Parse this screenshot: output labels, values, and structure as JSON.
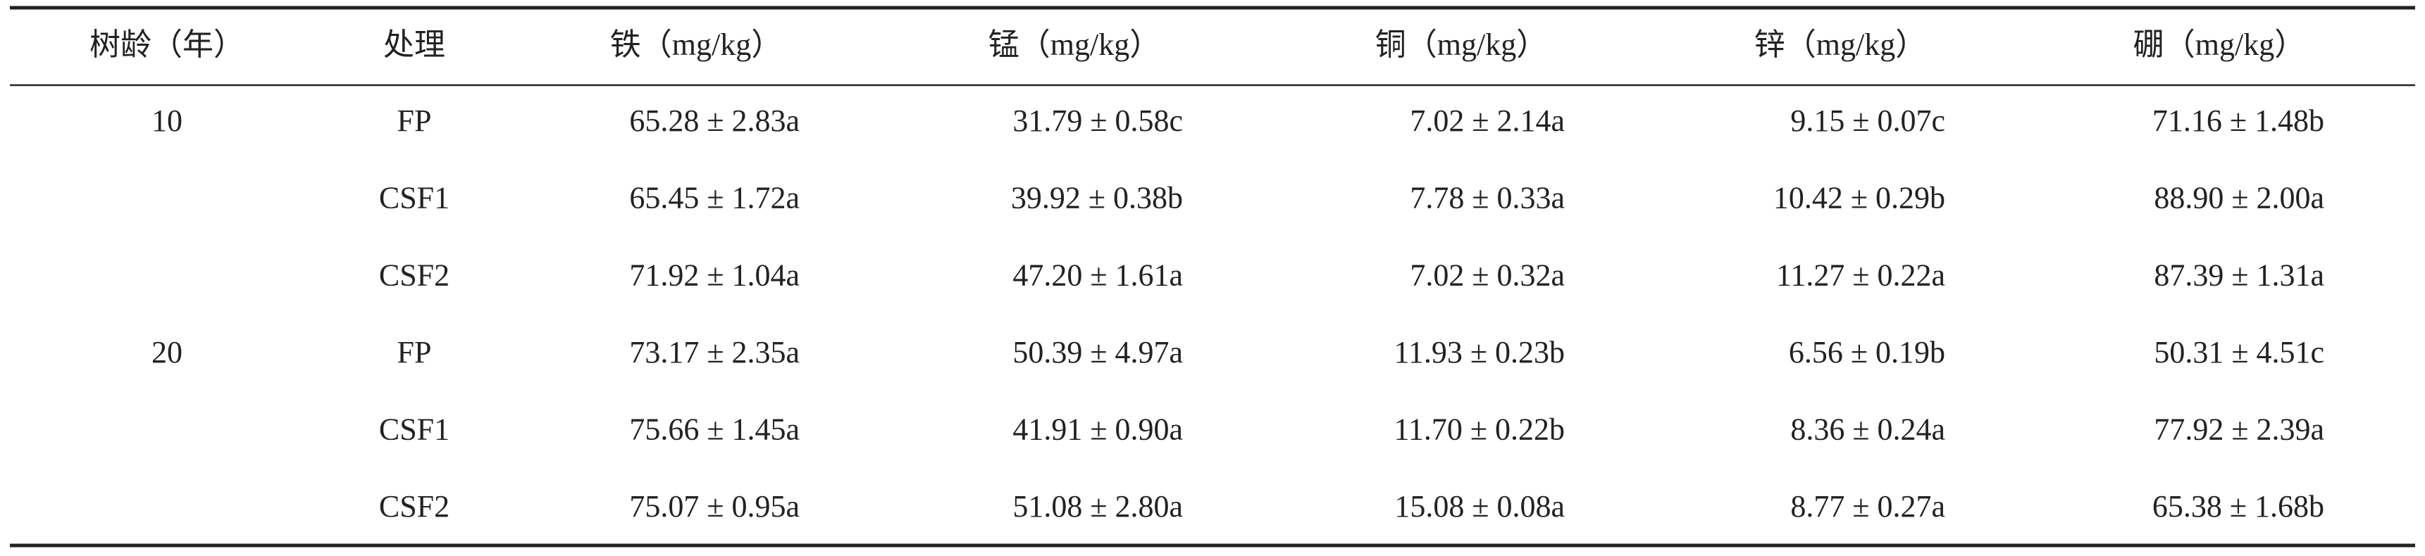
{
  "table": {
    "header": [
      "树龄（年）",
      "处理",
      "铁（mg/kg）",
      "锰（mg/kg）",
      "铜（mg/kg）",
      "锌（mg/kg）",
      "硼（mg/kg）"
    ],
    "groups": [
      {
        "age": "10",
        "rows": [
          [
            "FP",
            "65.28 ± 2.83a",
            "31.79 ± 0.58c",
            "7.02 ± 2.14a",
            "9.15 ± 0.07c",
            "71.16 ± 1.48b"
          ],
          [
            "CSF1",
            "65.45 ± 1.72a",
            "39.92 ± 0.38b",
            "7.78 ± 0.33a",
            "10.42 ± 0.29b",
            "88.90 ± 2.00a"
          ],
          [
            "CSF2",
            "71.92 ± 1.04a",
            "47.20 ± 1.61a",
            "7.02 ± 0.32a",
            "11.27 ± 0.22a",
            "87.39 ± 1.31a"
          ]
        ]
      },
      {
        "age": "20",
        "rows": [
          [
            "FP",
            "73.17 ± 2.35a",
            "50.39 ± 4.97a",
            "11.93 ± 0.23b",
            "6.56 ± 0.19b",
            "50.31 ± 4.51c"
          ],
          [
            "CSF1",
            "75.66 ± 1.45a",
            "41.91 ± 0.90a",
            "11.70 ± 0.22b",
            "8.36 ± 0.24a",
            "77.92 ± 2.39a"
          ],
          [
            "CSF2",
            "75.07 ± 0.95a",
            "51.08 ± 2.80a",
            "15.08 ± 0.08a",
            "8.77 ± 0.27a",
            "65.38 ± 1.68b"
          ]
        ]
      }
    ]
  }
}
